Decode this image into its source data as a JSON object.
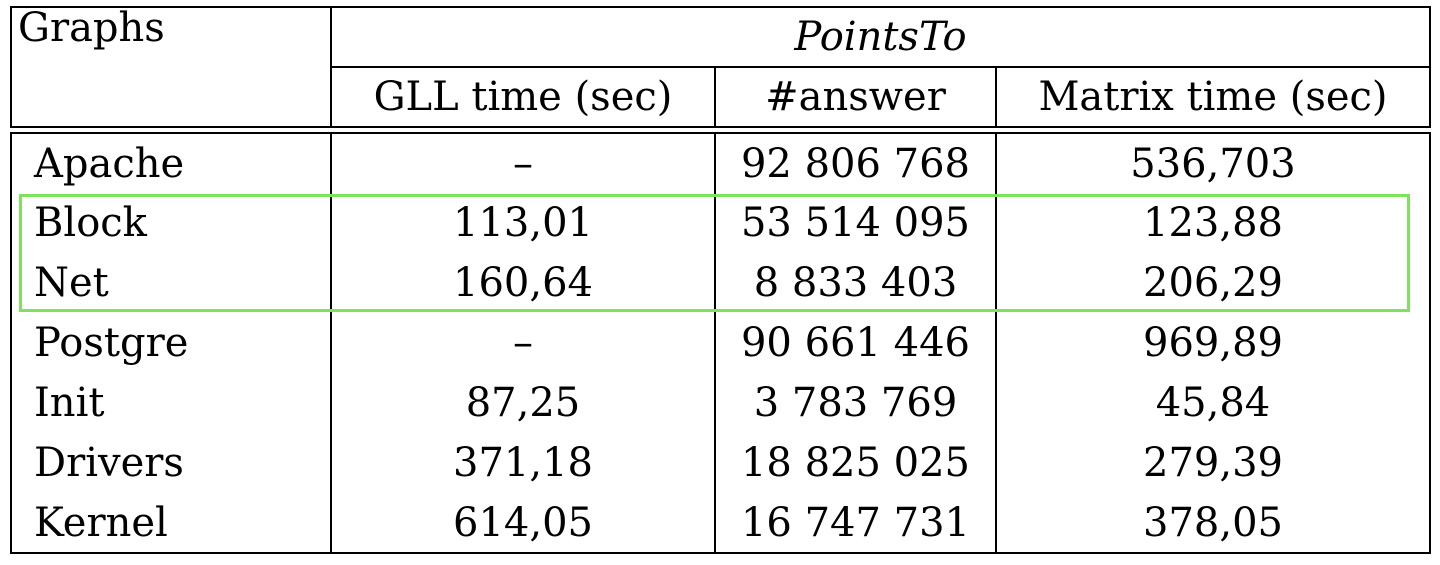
{
  "table": {
    "header": {
      "graphs_label": "Graphs",
      "group_label": "PointsTo",
      "columns": [
        "GLL time (sec)",
        "#answer",
        "Matrix time (sec)"
      ]
    },
    "rows": [
      {
        "graph": "Apache",
        "gll": "–",
        "answer": "92 806 768",
        "matrix": "536,703"
      },
      {
        "graph": "Block",
        "gll": "113,01",
        "answer": "53 514 095",
        "matrix": "123,88"
      },
      {
        "graph": "Net",
        "gll": "160,64",
        "answer": "8 833 403",
        "matrix": "206,29"
      },
      {
        "graph": "Postgre",
        "gll": "–",
        "answer": "90 661 446",
        "matrix": "969,89"
      },
      {
        "graph": "Init",
        "gll": "87,25",
        "answer": "3 783 769",
        "matrix": "45,84"
      },
      {
        "graph": "Drivers",
        "gll": "371,18",
        "answer": "18 825 025",
        "matrix": "279,39"
      },
      {
        "graph": "Kernel",
        "gll": "614,05",
        "answer": "16 747 731",
        "matrix": "378,05"
      }
    ],
    "highlighted_rows": [
      "Block",
      "Net"
    ],
    "highlight_color": "#7de35a"
  }
}
